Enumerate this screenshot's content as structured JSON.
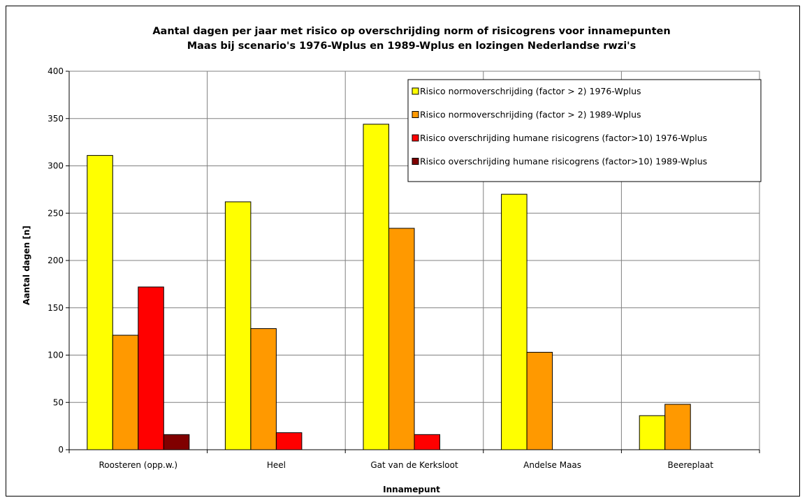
{
  "chart_data": {
    "type": "bar",
    "title": [
      "Aantal dagen per jaar met risico op overschrijding norm of risicogrens voor innamepunten",
      "Maas bij scenario's 1976-Wplus en 1989-Wplus en lozingen Nederlandse rwzi's"
    ],
    "xlabel": "Innamepunt",
    "ylabel": "Aantal dagen [n]",
    "ylim": [
      0,
      400
    ],
    "ytick_step": 50,
    "grid": true,
    "legend_position": "top-right",
    "categories": [
      "Roosteren (opp.w.)",
      "Heel",
      "Gat van de Kerksloot",
      "Andelse Maas",
      "Beereplaat"
    ],
    "series": [
      {
        "name": "Risico normoverschrijding (factor > 2) 1976-Wplus",
        "color": "#FFFF00",
        "values": [
          311,
          262,
          344,
          270,
          36
        ]
      },
      {
        "name": "Risico normoverschrijding (factor > 2) 1989-Wplus",
        "color": "#FF9900",
        "values": [
          121,
          128,
          234,
          103,
          48
        ]
      },
      {
        "name": "Risico overschrijding humane risicogrens (factor>10) 1976-Wplus",
        "color": "#FF0000",
        "values": [
          172,
          18,
          16,
          0,
          0
        ]
      },
      {
        "name": "Risico overschrijding humane risicogrens (factor>10) 1989-Wplus",
        "color": "#800000",
        "values": [
          16,
          0,
          0,
          0,
          0
        ]
      }
    ]
  }
}
